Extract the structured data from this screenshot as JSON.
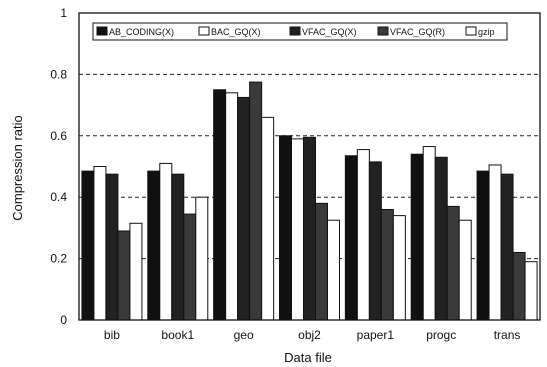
{
  "chart_data": {
    "type": "bar",
    "title": "",
    "xlabel": "Data file",
    "ylabel": "Compression ratio",
    "ylim": [
      0,
      1
    ],
    "yticks": [
      "0",
      "0.2",
      "0.4",
      "0.6",
      "0.8",
      "1"
    ],
    "grid": "horizontal dashed",
    "legend_position": "top",
    "categories": [
      "bib",
      "book1",
      "geo",
      "obj2",
      "paper1",
      "progc",
      "trans"
    ],
    "series": [
      {
        "name": "AB_CODING(X)",
        "fill": "#111111",
        "values": [
          0.485,
          0.485,
          0.75,
          0.6,
          0.535,
          0.54,
          0.485
        ]
      },
      {
        "name": "BAC_GQ(X)",
        "fill": "#ffffff",
        "values": [
          0.5,
          0.51,
          0.74,
          0.59,
          0.555,
          0.565,
          0.505
        ]
      },
      {
        "name": "VFAC_GQ(X)",
        "fill": "#222222",
        "values": [
          0.475,
          0.475,
          0.725,
          0.595,
          0.515,
          0.53,
          0.475
        ]
      },
      {
        "name": "VFAC_GQ(R)",
        "fill": "#3a3a3a",
        "values": [
          0.29,
          0.345,
          0.775,
          0.38,
          0.36,
          0.37,
          0.22
        ]
      },
      {
        "name": "gzip",
        "fill": "#ffffff",
        "values": [
          0.315,
          0.4,
          0.66,
          0.325,
          0.34,
          0.325,
          0.19
        ]
      }
    ]
  }
}
